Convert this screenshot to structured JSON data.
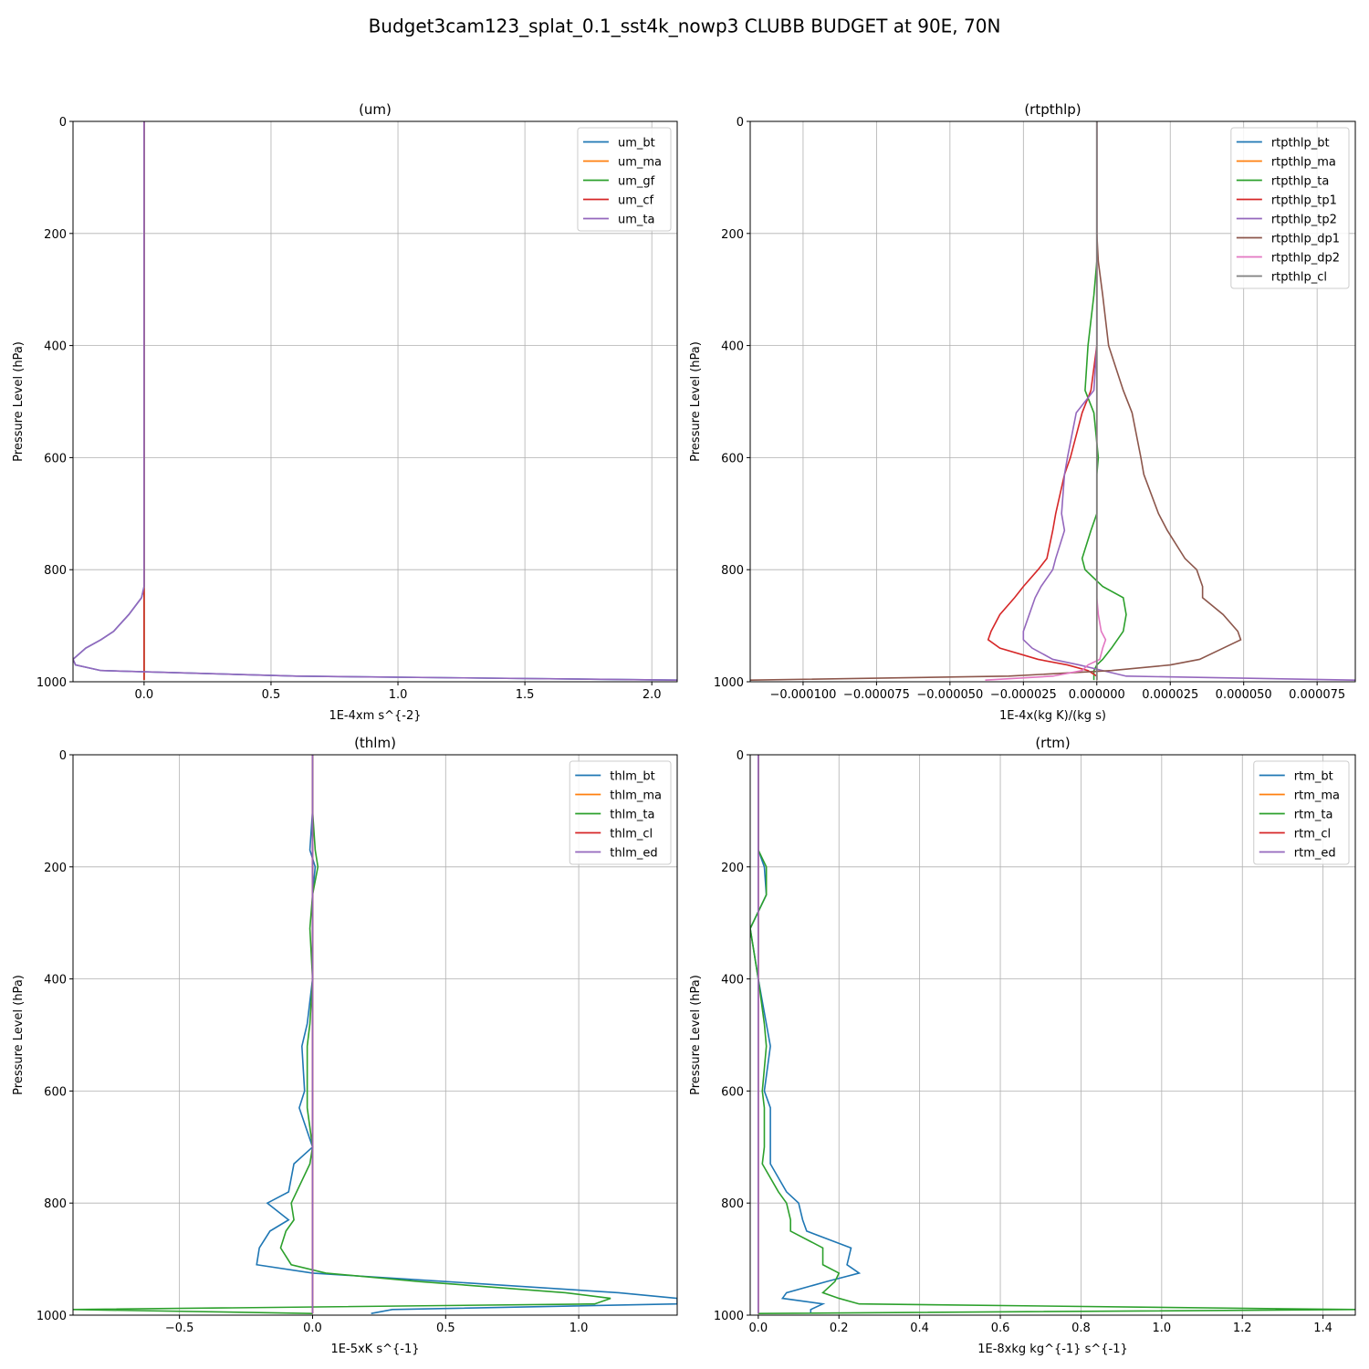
{
  "title": "Budget3cam123_splat_0.1_sst4k_nowp3 CLUBB BUDGET at 90E, 70N",
  "chart_data": [
    {
      "type": "line",
      "title": "(um)",
      "xlabel": "1E-4xm s^{-2}",
      "ylabel": "Pressure Level (hPa)",
      "y": [
        0,
        100,
        170,
        200,
        250,
        310,
        400,
        480,
        520,
        600,
        630,
        700,
        730,
        780,
        800,
        830,
        850,
        880,
        910,
        925,
        940,
        960,
        970,
        980,
        990,
        997
      ],
      "xlim": [
        -0.28,
        2.1
      ],
      "ylim": [
        1000,
        0
      ],
      "xticks": [
        {
          "value": 0,
          "label": "0.0"
        },
        0.5,
        {
          "value": 1,
          "label": "1.0"
        },
        1.5,
        {
          "value": 2,
          "label": "2.0"
        }
      ],
      "yticks": [
        0,
        200,
        400,
        600,
        800,
        1000
      ],
      "grid": true,
      "legend": "upper right",
      "series": [
        {
          "name": "um_bt",
          "color": "#1f77b4",
          "values": [
            0,
            0,
            0,
            0,
            0,
            0,
            0,
            0,
            0,
            0,
            0,
            0,
            0,
            0,
            0,
            0,
            -0.01,
            -0.06,
            -0.12,
            -0.17,
            -0.23,
            -0.28,
            -0.27,
            -0.17,
            0.6,
            2.1
          ]
        },
        {
          "name": "um_ma",
          "color": "#ff7f0e",
          "values": [
            0,
            0,
            0,
            0,
            0,
            0,
            0,
            0,
            0,
            0,
            0,
            0,
            0,
            0,
            0,
            0,
            0,
            0,
            0,
            0,
            0,
            0,
            0,
            0,
            0,
            0
          ]
        },
        {
          "name": "um_gf",
          "color": "#2ca02c",
          "values": [
            0,
            0,
            0,
            0,
            0,
            0,
            0,
            0,
            0,
            0,
            0,
            0,
            0,
            0,
            0,
            0,
            0,
            0,
            0,
            0,
            0,
            0,
            0,
            0,
            0,
            0
          ]
        },
        {
          "name": "um_cf",
          "color": "#d62728",
          "values": [
            0,
            0,
            0,
            0,
            0,
            0,
            0,
            0,
            0,
            0,
            0,
            0,
            0,
            0,
            0,
            0,
            0,
            0,
            0,
            0,
            0,
            0,
            0,
            0,
            0,
            0
          ]
        },
        {
          "name": "um_ta",
          "color": "#9467bd",
          "values": [
            0,
            0,
            0,
            0,
            0,
            0,
            0,
            0,
            0,
            0,
            0,
            0,
            0,
            0,
            0,
            0,
            -0.01,
            -0.06,
            -0.12,
            -0.17,
            -0.23,
            -0.28,
            -0.27,
            -0.17,
            0.6,
            2.1
          ]
        }
      ]
    },
    {
      "type": "line",
      "title": "(rtpthlp)",
      "xlabel": "1E-4x(kg K)/(kg s)",
      "ylabel": "Pressure Level (hPa)",
      "y": [
        0,
        100,
        170,
        200,
        250,
        310,
        400,
        480,
        520,
        600,
        630,
        700,
        730,
        780,
        800,
        830,
        850,
        880,
        910,
        925,
        940,
        960,
        970,
        980,
        990,
        997
      ],
      "xlim": [
        -0.000118,
        8.8e-05
      ],
      "ylim": [
        1000,
        0
      ],
      "xticks": [
        {
          "value": -0.0001,
          "label": "−0.000100"
        },
        {
          "value": -7.5e-05,
          "label": "−0.000075"
        },
        {
          "value": -5e-05,
          "label": "−0.000050"
        },
        {
          "value": -2.5e-05,
          "label": "−0.000025"
        },
        {
          "value": 0,
          "label": "0.000000"
        },
        {
          "value": 2.5e-05,
          "label": "0.000025"
        },
        {
          "value": 5e-05,
          "label": "0.000050"
        },
        {
          "value": 7.5e-05,
          "label": "0.000075"
        }
      ],
      "yticks": [
        0,
        200,
        400,
        600,
        800,
        1000
      ],
      "grid": true,
      "legend": "upper right",
      "series": [
        {
          "name": "rtpthlp_bt",
          "color": "#1f77b4",
          "values": [
            0,
            0,
            0,
            0,
            0,
            0,
            0,
            0,
            0,
            0,
            0,
            0,
            0,
            0,
            0,
            0,
            0,
            0,
            0,
            0,
            0,
            0,
            0,
            0,
            0,
            0
          ]
        },
        {
          "name": "rtpthlp_ma",
          "color": "#ff7f0e",
          "values": [
            0,
            0,
            0,
            0,
            0,
            0,
            0,
            0,
            0,
            0,
            0,
            0,
            0,
            0,
            0,
            0,
            0,
            0,
            0,
            0,
            0,
            0,
            0,
            0,
            0,
            0
          ]
        },
        {
          "name": "rtpthlp_ta",
          "color": "#2ca02c",
          "values": [
            0,
            0,
            0,
            0,
            0,
            -1e-06,
            -3e-06,
            -4e-06,
            -1e-06,
            5e-07,
            0,
            0,
            -2e-06,
            -5e-06,
            -4e-06,
            2e-06,
            9e-06,
            1e-05,
            9e-06,
            7e-06,
            5e-06,
            2e-06,
            0,
            -1e-06,
            -1e-06,
            -1e-06
          ]
        },
        {
          "name": "rtpthlp_tp1",
          "color": "#d62728",
          "values": [
            0,
            0,
            0,
            0,
            0,
            0,
            0,
            -2e-06,
            -5e-06,
            -9e-06,
            -1.1e-05,
            -1.4e-05,
            -1.5e-05,
            -1.7e-05,
            -2e-05,
            -2.5e-05,
            -2.8e-05,
            -3.3e-05,
            -3.6e-05,
            -3.7e-05,
            -3.3e-05,
            -2e-05,
            -1e-05,
            -3e-06,
            0,
            0
          ]
        },
        {
          "name": "rtpthlp_tp2",
          "color": "#9467bd",
          "values": [
            0,
            0,
            0,
            0,
            0,
            0,
            0,
            -1e-06,
            -7e-06,
            -1e-05,
            -1.1e-05,
            -1.2e-05,
            -1.1e-05,
            -1.4e-05,
            -1.5e-05,
            -1.9e-05,
            -2.1e-05,
            -2.3e-05,
            -2.5e-05,
            -2.5e-05,
            -2.2e-05,
            -1.5e-05,
            -6e-06,
            2e-06,
            1e-05,
            8.8e-05
          ]
        },
        {
          "name": "rtpthlp_dp1",
          "color": "#8c564b",
          "values": [
            0,
            0,
            0,
            0,
            5e-07,
            2e-06,
            4e-06,
            9e-06,
            1.2e-05,
            1.5e-05,
            1.6e-05,
            2.1e-05,
            2.4e-05,
            3e-05,
            3.4e-05,
            3.6e-05,
            3.6e-05,
            4.3e-05,
            4.8e-05,
            4.9e-05,
            4.3e-05,
            3.5e-05,
            2.5e-05,
            5e-06,
            -3e-05,
            -0.000118
          ]
        },
        {
          "name": "rtpthlp_dp2",
          "color": "#e377c2",
          "values": [
            0,
            0,
            0,
            0,
            0,
            0,
            0,
            0,
            0,
            0,
            0,
            0,
            0,
            0,
            0,
            0,
            0,
            5e-07,
            1.5e-06,
            3e-06,
            2e-06,
            1e-06,
            -3e-06,
            -5e-06,
            -1.5e-05,
            -3.8e-05
          ]
        },
        {
          "name": "rtpthlp_cl",
          "color": "#7f7f7f",
          "values": [
            0,
            0,
            0,
            0,
            0,
            0,
            0,
            0,
            0,
            0,
            0,
            0,
            0,
            0,
            0,
            0,
            0,
            0,
            0,
            0,
            0,
            0,
            0,
            0,
            0,
            0
          ]
        }
      ]
    },
    {
      "type": "line",
      "title": "(thlm)",
      "xlabel": "1E-5xK s^{-1}",
      "ylabel": "Pressure Level (hPa)",
      "y": [
        0,
        100,
        170,
        200,
        250,
        310,
        400,
        480,
        520,
        600,
        630,
        700,
        730,
        780,
        800,
        830,
        850,
        880,
        910,
        925,
        940,
        960,
        970,
        980,
        990,
        997
      ],
      "xlim": [
        -0.9,
        1.37
      ],
      "ylim": [
        1000,
        0
      ],
      "xticks": [
        {
          "value": -0.5,
          "label": "−0.5"
        },
        {
          "value": 0,
          "label": "0.0"
        },
        0.5,
        {
          "value": 1,
          "label": "1.0"
        }
      ],
      "yticks": [
        0,
        200,
        400,
        600,
        800,
        1000
      ],
      "grid": true,
      "legend": "upper right",
      "series": [
        {
          "name": "thlm_bt",
          "color": "#1f77b4",
          "values": [
            0,
            0,
            -0.01,
            0.01,
            0,
            0,
            0,
            -0.02,
            -0.04,
            -0.03,
            -0.05,
            0,
            -0.07,
            -0.09,
            -0.17,
            -0.09,
            -0.16,
            -0.2,
            -0.21,
            0,
            0.5,
            1.15,
            1.37,
            1.37,
            0.3,
            0.22
          ]
        },
        {
          "name": "thlm_ma",
          "color": "#ff7f0e",
          "values": [
            0,
            0,
            0,
            0,
            0,
            0,
            0,
            0,
            0,
            0,
            0,
            0,
            0,
            0,
            0,
            0,
            0,
            0,
            0,
            0,
            0,
            0,
            0,
            0,
            0,
            0
          ]
        },
        {
          "name": "thlm_ta",
          "color": "#2ca02c",
          "values": [
            0,
            0,
            0.01,
            0.02,
            0,
            -0.01,
            0,
            -0.01,
            -0.02,
            -0.02,
            -0.02,
            0,
            -0.01,
            -0.06,
            -0.08,
            -0.07,
            -0.1,
            -0.12,
            -0.08,
            0.05,
            0.4,
            0.95,
            1.12,
            1.06,
            -0.9,
            0
          ]
        },
        {
          "name": "thlm_cl",
          "color": "#d62728",
          "values": [
            0,
            0,
            0,
            0,
            0,
            0,
            0,
            0,
            0,
            0,
            0,
            0,
            0,
            0,
            0,
            0,
            0,
            0,
            0,
            0,
            0,
            0,
            0,
            0,
            0,
            0
          ]
        },
        {
          "name": "thlm_ed",
          "color": "#9467bd",
          "values": [
            0,
            0,
            0,
            0,
            0,
            0,
            0,
            0,
            0,
            0,
            0,
            0,
            0,
            0,
            0,
            0,
            0,
            0,
            0,
            0,
            0,
            0,
            0,
            0,
            0,
            0
          ]
        }
      ]
    },
    {
      "type": "line",
      "title": "(rtm)",
      "xlabel": "1E-8xkg kg^{-1} s^{-1}",
      "ylabel": "Pressure Level (hPa)",
      "y": [
        0,
        100,
        170,
        200,
        250,
        310,
        400,
        480,
        520,
        600,
        630,
        700,
        730,
        780,
        800,
        830,
        850,
        880,
        910,
        925,
        940,
        960,
        970,
        980,
        990,
        997
      ],
      "xlim": [
        -0.02,
        1.48
      ],
      "ylim": [
        1000,
        0
      ],
      "xticks": [
        {
          "value": 0,
          "label": "0.0"
        },
        0.2,
        0.4,
        0.6,
        0.8,
        {
          "value": 1,
          "label": "1.0"
        },
        1.2,
        1.4
      ],
      "yticks": [
        0,
        200,
        400,
        600,
        800,
        1000
      ],
      "grid": true,
      "legend": "upper right",
      "series": [
        {
          "name": "rtm_bt",
          "color": "#1f77b4",
          "values": [
            0,
            0,
            0,
            0.015,
            0.02,
            -0.02,
            0,
            0.02,
            0.03,
            0.015,
            0.03,
            0.03,
            0.03,
            0.07,
            0.1,
            0.11,
            0.12,
            0.23,
            0.22,
            0.25,
            0.17,
            0.07,
            0.06,
            0.16,
            0.13,
            0.13
          ]
        },
        {
          "name": "rtm_ma",
          "color": "#ff7f0e",
          "values": [
            0,
            0,
            0,
            0,
            0,
            0,
            0,
            0,
            0,
            0,
            0,
            0,
            0,
            0,
            0,
            0,
            0,
            0,
            0,
            0,
            0,
            0,
            0,
            0,
            0,
            0
          ]
        },
        {
          "name": "rtm_ta",
          "color": "#2ca02c",
          "values": [
            0,
            0,
            0,
            0.02,
            0.02,
            -0.02,
            0,
            0.015,
            0.02,
            0.01,
            0.015,
            0.015,
            0.01,
            0.05,
            0.07,
            0.08,
            0.08,
            0.16,
            0.16,
            0.2,
            0.19,
            0.16,
            0.2,
            0.25,
            1.48,
            0
          ]
        },
        {
          "name": "rtm_cl",
          "color": "#d62728",
          "values": [
            0,
            0,
            0,
            0,
            0,
            0,
            0,
            0,
            0,
            0,
            0,
            0,
            0,
            0,
            0,
            0,
            0,
            0,
            0,
            0,
            0,
            0,
            0,
            0,
            0,
            0
          ]
        },
        {
          "name": "rtm_ed",
          "color": "#9467bd",
          "values": [
            0,
            0,
            0,
            0,
            0,
            0,
            0,
            0,
            0,
            0,
            0,
            0,
            0,
            0,
            0,
            0,
            0,
            0,
            0,
            0,
            0,
            0,
            0,
            0,
            0,
            0
          ]
        }
      ]
    }
  ]
}
